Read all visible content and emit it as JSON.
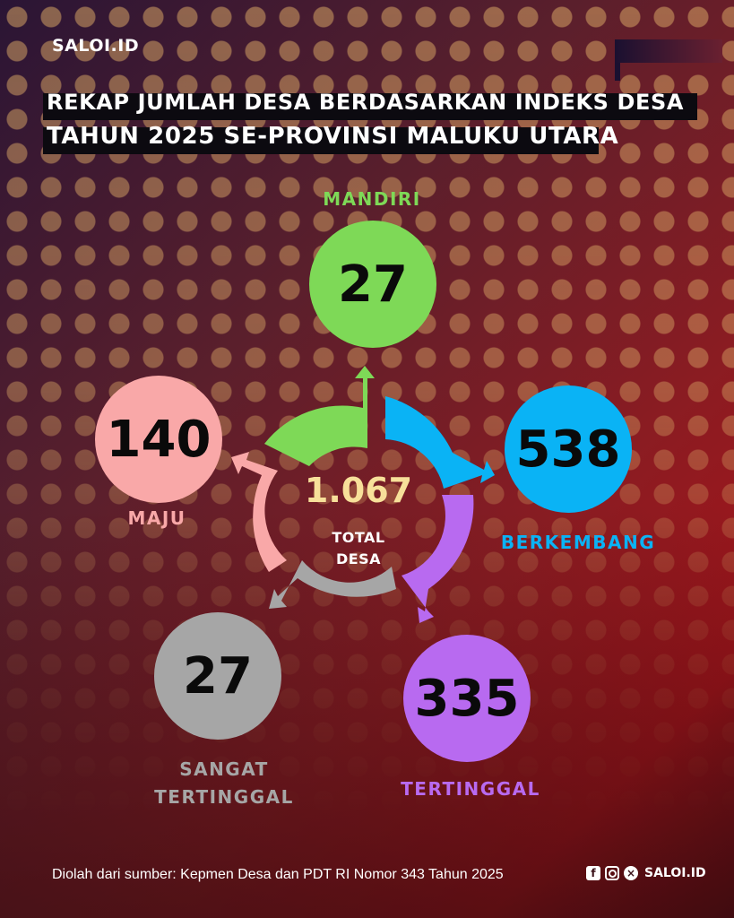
{
  "brand": {
    "logo": "SALOI.ID",
    "handle": "SALOI.ID"
  },
  "title": {
    "line1": "REKAP JUMLAH DESA BERDASARKAN INDEKS DESA",
    "line2": "TAHUN 2025 SE-PROVINSI MALUKU UTARA"
  },
  "categories": {
    "mandiri": {
      "label": "MANDIRI",
      "value": "27",
      "color": "#7ed957"
    },
    "berkembang": {
      "label": "BERKEMBANG",
      "value": "538",
      "color": "#0ab3f5"
    },
    "tertinggal": {
      "label": "TERTINGGAL",
      "value": "335",
      "color": "#b86af0"
    },
    "sangat_tertinggal": {
      "label_line1": "SANGAT",
      "label_line2": "TERTINGGAL",
      "value": "27",
      "color": "#a6a6a6"
    },
    "maju": {
      "label": "MAJU",
      "value": "140",
      "color": "#f9a8a8"
    }
  },
  "total": {
    "value": "1.067",
    "label_line1": "TOTAL",
    "label_line2": "DESA",
    "color": "#f7e09a"
  },
  "footer": {
    "source": "Diolah dari sumber: Kepmen Desa dan PDT RI Nomor 343 Tahun 2025",
    "icons": [
      "facebook-icon",
      "instagram-icon",
      "x-icon"
    ]
  }
}
